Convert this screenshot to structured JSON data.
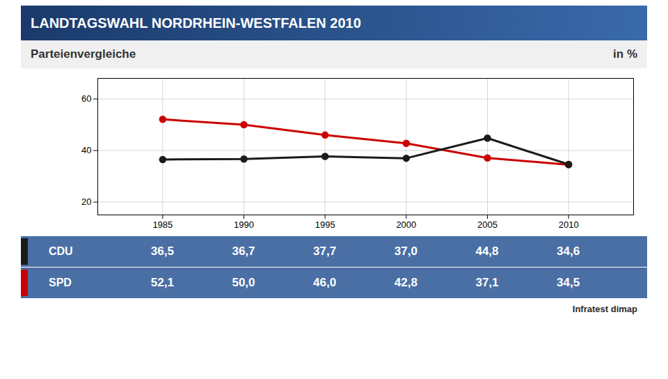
{
  "chart_data": {
    "type": "line",
    "title": "LANDTAGSWAHL NORDRHEIN-WESTFALEN 2010",
    "subtitle": "Parteienvergleiche",
    "ylabel": "in %",
    "source": "Infratest dimap",
    "x": [
      1985,
      1990,
      1995,
      2000,
      2005,
      2010
    ],
    "series": [
      {
        "name": "CDU",
        "color": "#1a1a1a",
        "marker": "circle",
        "values": [
          36.5,
          36.7,
          37.7,
          37.0,
          44.8,
          34.6
        ],
        "value_labels": [
          "36,5",
          "36,7",
          "37,7",
          "37,0",
          "44,8",
          "34,6"
        ]
      },
      {
        "name": "SPD",
        "color": "#cc0000",
        "marker": "circle",
        "values": [
          52.1,
          50.0,
          46.0,
          42.8,
          37.1,
          34.5
        ],
        "value_labels": [
          "52,1",
          "50,0",
          "46,0",
          "42,8",
          "37,1",
          "34,5"
        ]
      }
    ],
    "xlim": [
      1981,
      2014
    ],
    "xticks": [
      1985,
      1990,
      1995,
      2000,
      2005,
      2010
    ],
    "ylim": [
      15,
      68
    ],
    "yticks": [
      20,
      40,
      60
    ],
    "grid": true,
    "data_labels": true
  }
}
